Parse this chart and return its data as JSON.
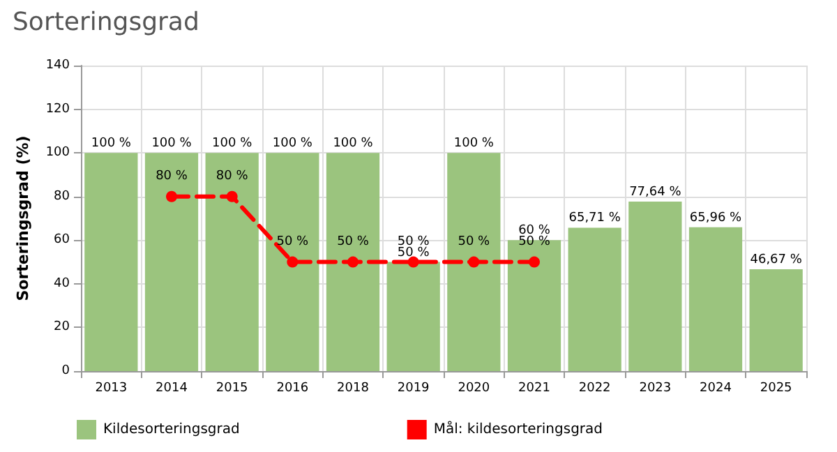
{
  "chart_data": {
    "type": "bar",
    "title": "Sorteringsgrad",
    "ylabel": "Sorteringsgrad (%)",
    "categories": [
      "2013",
      "2014",
      "2015",
      "2016",
      "2018",
      "2019",
      "2020",
      "2021",
      "2022",
      "2023",
      "2024",
      "2025"
    ],
    "series": [
      {
        "name": "Kildesorteringsgrad",
        "color": "#9bc47e",
        "values": [
          100,
          100,
          100,
          100,
          100,
          50,
          100,
          60,
          65.71,
          77.64,
          65.96,
          46.67
        ],
        "value_labels": [
          "100 %",
          "100 %",
          "100 %",
          "100 %",
          "100 %",
          "50 %",
          "100 %",
          "60 %",
          "65,71 %",
          "77,64 %",
          "65,96 %",
          "46,67 %"
        ]
      },
      {
        "name": "Mål: kildesorteringsgrad",
        "type": "line",
        "color": "#ff0000",
        "line_style": "dashed",
        "marker": "circle",
        "values": [
          null,
          80,
          80,
          50,
          50,
          50,
          50,
          50,
          null,
          null,
          null,
          null
        ],
        "value_labels": [
          null,
          "80 %",
          "80 %",
          "50 %",
          "50 %",
          "50 %",
          "50 %",
          "50 %",
          null,
          null,
          null,
          null
        ]
      }
    ],
    "ylim": [
      0,
      140
    ],
    "yticks": [
      0,
      20,
      40,
      60,
      80,
      100,
      120,
      140
    ],
    "grid": true,
    "legend": "bottom"
  }
}
